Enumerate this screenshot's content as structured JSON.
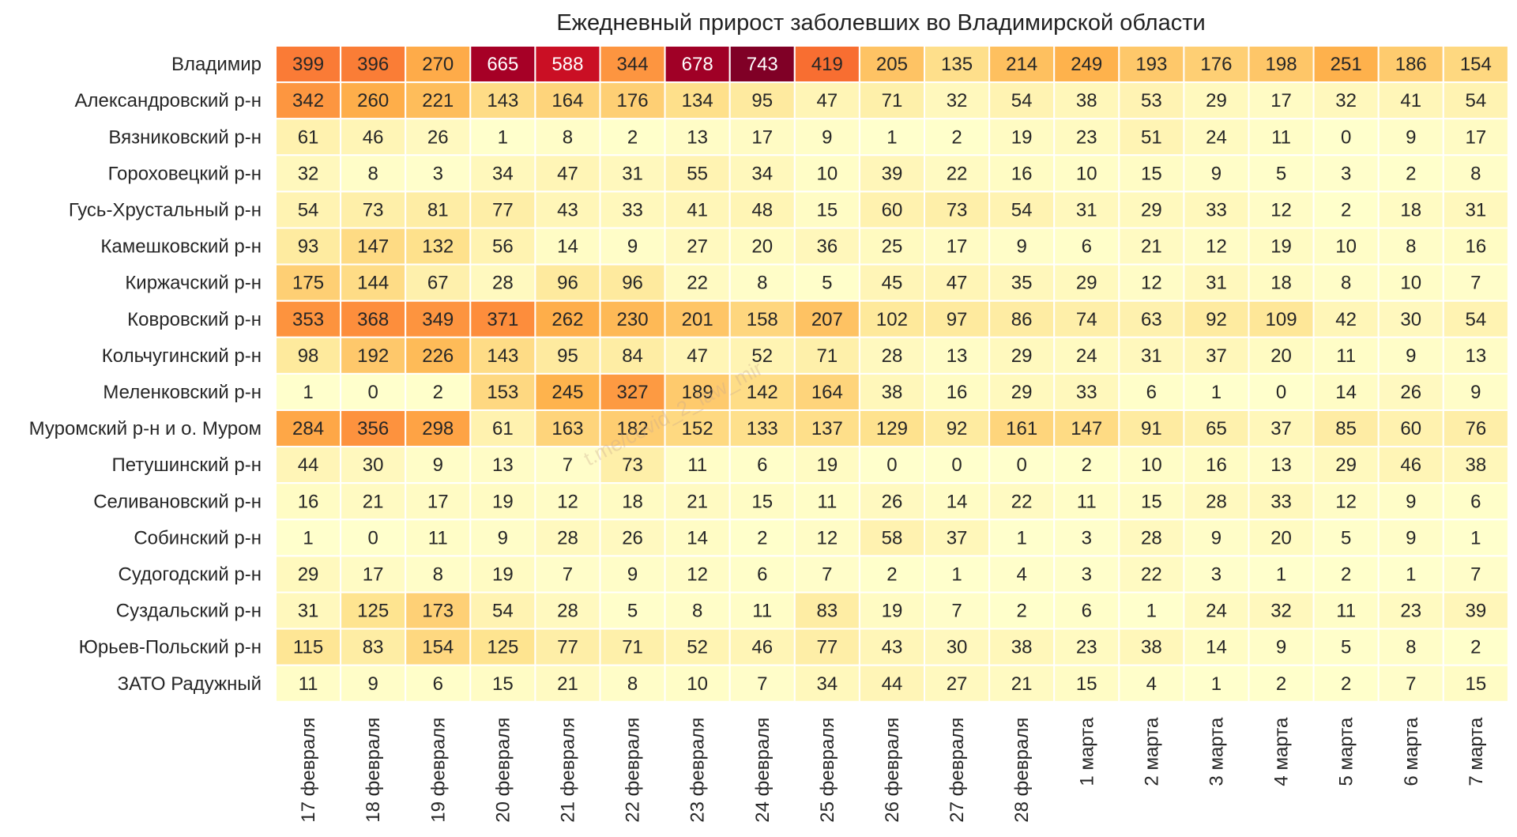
{
  "chart_data": {
    "type": "heatmap",
    "title": "Ежедневный прирост заболевших во Владимирской области",
    "watermark": "t.me/covid_2_law_mir",
    "colormap": [
      "#ffffcc",
      "#fee491",
      "#feb24c",
      "#fd8d3c",
      "#f03b20",
      "#bd0026",
      "#800026"
    ],
    "vmin": 0,
    "vmax": 743,
    "columns": [
      "17 февраля",
      "18 февраля",
      "19 февраля",
      "20 февраля",
      "21 февраля",
      "22 февраля",
      "23 февраля",
      "24 февраля",
      "25 февраля",
      "26 февраля",
      "27 февраля",
      "28 февраля",
      "1 марта",
      "2 марта",
      "3 марта",
      "4 марта",
      "5 марта",
      "6 марта",
      "7 марта"
    ],
    "rows": [
      {
        "name": "Владимир",
        "values": [
          399,
          396,
          270,
          665,
          588,
          344,
          678,
          743,
          419,
          205,
          135,
          214,
          249,
          193,
          176,
          198,
          251,
          186,
          154
        ]
      },
      {
        "name": "Александровский р-н",
        "values": [
          342,
          260,
          221,
          143,
          164,
          176,
          134,
          95,
          47,
          71,
          32,
          54,
          38,
          53,
          29,
          17,
          32,
          41,
          54
        ]
      },
      {
        "name": "Вязниковский р-н",
        "values": [
          61,
          46,
          26,
          1,
          8,
          2,
          13,
          17,
          9,
          1,
          2,
          19,
          23,
          51,
          24,
          11,
          0,
          9,
          17
        ]
      },
      {
        "name": "Гороховецкий р-н",
        "values": [
          32,
          8,
          3,
          34,
          47,
          31,
          55,
          34,
          10,
          39,
          22,
          16,
          10,
          15,
          9,
          5,
          3,
          2,
          8
        ]
      },
      {
        "name": "Гусь-Хрустальный р-н",
        "values": [
          54,
          73,
          81,
          77,
          43,
          33,
          41,
          48,
          15,
          60,
          73,
          54,
          31,
          29,
          33,
          12,
          2,
          18,
          31
        ]
      },
      {
        "name": "Камешковский р-н",
        "values": [
          93,
          147,
          132,
          56,
          14,
          9,
          27,
          20,
          36,
          25,
          17,
          9,
          6,
          21,
          12,
          19,
          10,
          8,
          16
        ]
      },
      {
        "name": "Киржачский р-н",
        "values": [
          175,
          144,
          67,
          28,
          96,
          96,
          22,
          8,
          5,
          45,
          47,
          35,
          29,
          12,
          31,
          18,
          8,
          10,
          7
        ]
      },
      {
        "name": "Ковровский р-н",
        "values": [
          353,
          368,
          349,
          371,
          262,
          230,
          201,
          158,
          207,
          102,
          97,
          86,
          74,
          63,
          92,
          109,
          42,
          30,
          54
        ]
      },
      {
        "name": "Кольчугинский р-н",
        "values": [
          98,
          192,
          226,
          143,
          95,
          84,
          47,
          52,
          71,
          28,
          13,
          29,
          24,
          31,
          37,
          20,
          11,
          9,
          13
        ]
      },
      {
        "name": "Меленковский р-н",
        "values": [
          1,
          0,
          2,
          153,
          245,
          327,
          189,
          142,
          164,
          38,
          16,
          29,
          33,
          6,
          1,
          0,
          14,
          26,
          9
        ]
      },
      {
        "name": "Муромский р-н и о. Муром",
        "values": [
          284,
          356,
          298,
          61,
          163,
          182,
          152,
          133,
          137,
          129,
          92,
          161,
          147,
          91,
          65,
          37,
          85,
          60,
          76
        ]
      },
      {
        "name": "Петушинский р-н",
        "values": [
          44,
          30,
          9,
          13,
          7,
          73,
          11,
          6,
          19,
          0,
          0,
          0,
          2,
          10,
          16,
          13,
          29,
          46,
          38
        ]
      },
      {
        "name": "Селивановский р-н",
        "values": [
          16,
          21,
          17,
          19,
          12,
          18,
          21,
          15,
          11,
          26,
          14,
          22,
          11,
          15,
          28,
          33,
          12,
          9,
          6
        ]
      },
      {
        "name": "Собинский р-н",
        "values": [
          1,
          0,
          11,
          9,
          28,
          26,
          14,
          2,
          12,
          58,
          37,
          1,
          3,
          28,
          9,
          20,
          5,
          9,
          1
        ]
      },
      {
        "name": "Судогодский р-н",
        "values": [
          29,
          17,
          8,
          19,
          7,
          9,
          12,
          6,
          7,
          2,
          1,
          4,
          3,
          22,
          3,
          1,
          2,
          1,
          7
        ]
      },
      {
        "name": "Суздальский р-н",
        "values": [
          31,
          125,
          173,
          54,
          28,
          5,
          8,
          11,
          83,
          19,
          7,
          2,
          6,
          1,
          24,
          32,
          11,
          23,
          39
        ]
      },
      {
        "name": "Юрьев-Польский р-н",
        "values": [
          115,
          83,
          154,
          125,
          77,
          71,
          52,
          46,
          77,
          43,
          30,
          38,
          23,
          38,
          14,
          9,
          5,
          8,
          2
        ]
      },
      {
        "name": "ЗАТО Радужный",
        "values": [
          11,
          9,
          6,
          15,
          21,
          8,
          10,
          7,
          34,
          44,
          27,
          21,
          15,
          4,
          1,
          2,
          2,
          7,
          15
        ]
      }
    ]
  }
}
